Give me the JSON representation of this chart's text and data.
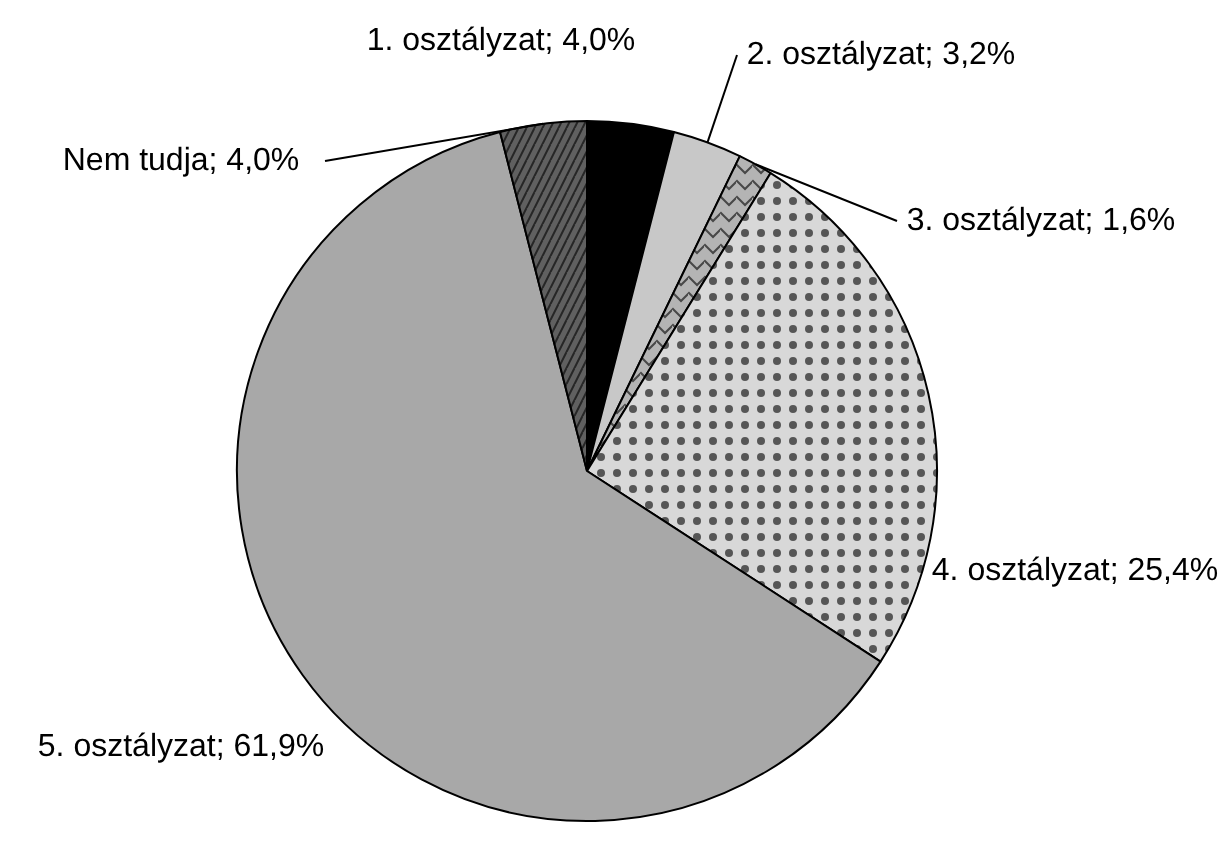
{
  "chart_data": {
    "type": "pie",
    "categories": [
      "1. osztályzat",
      "2. osztályzat",
      "3. osztályzat",
      "4. osztályzat",
      "5. osztályzat",
      "Nem tudja"
    ],
    "values": [
      4.0,
      3.2,
      1.6,
      25.4,
      61.9,
      4.0
    ],
    "value_labels": [
      "4,0%",
      "3,2%",
      "1,6%",
      "25,4%",
      "61,9%",
      "4,0%"
    ],
    "colors": [
      "#000000",
      "#c8c8c8",
      "#b4b4b4",
      "#d8d8d8",
      "#a8a8a8",
      "#606060"
    ],
    "legend": false
  }
}
